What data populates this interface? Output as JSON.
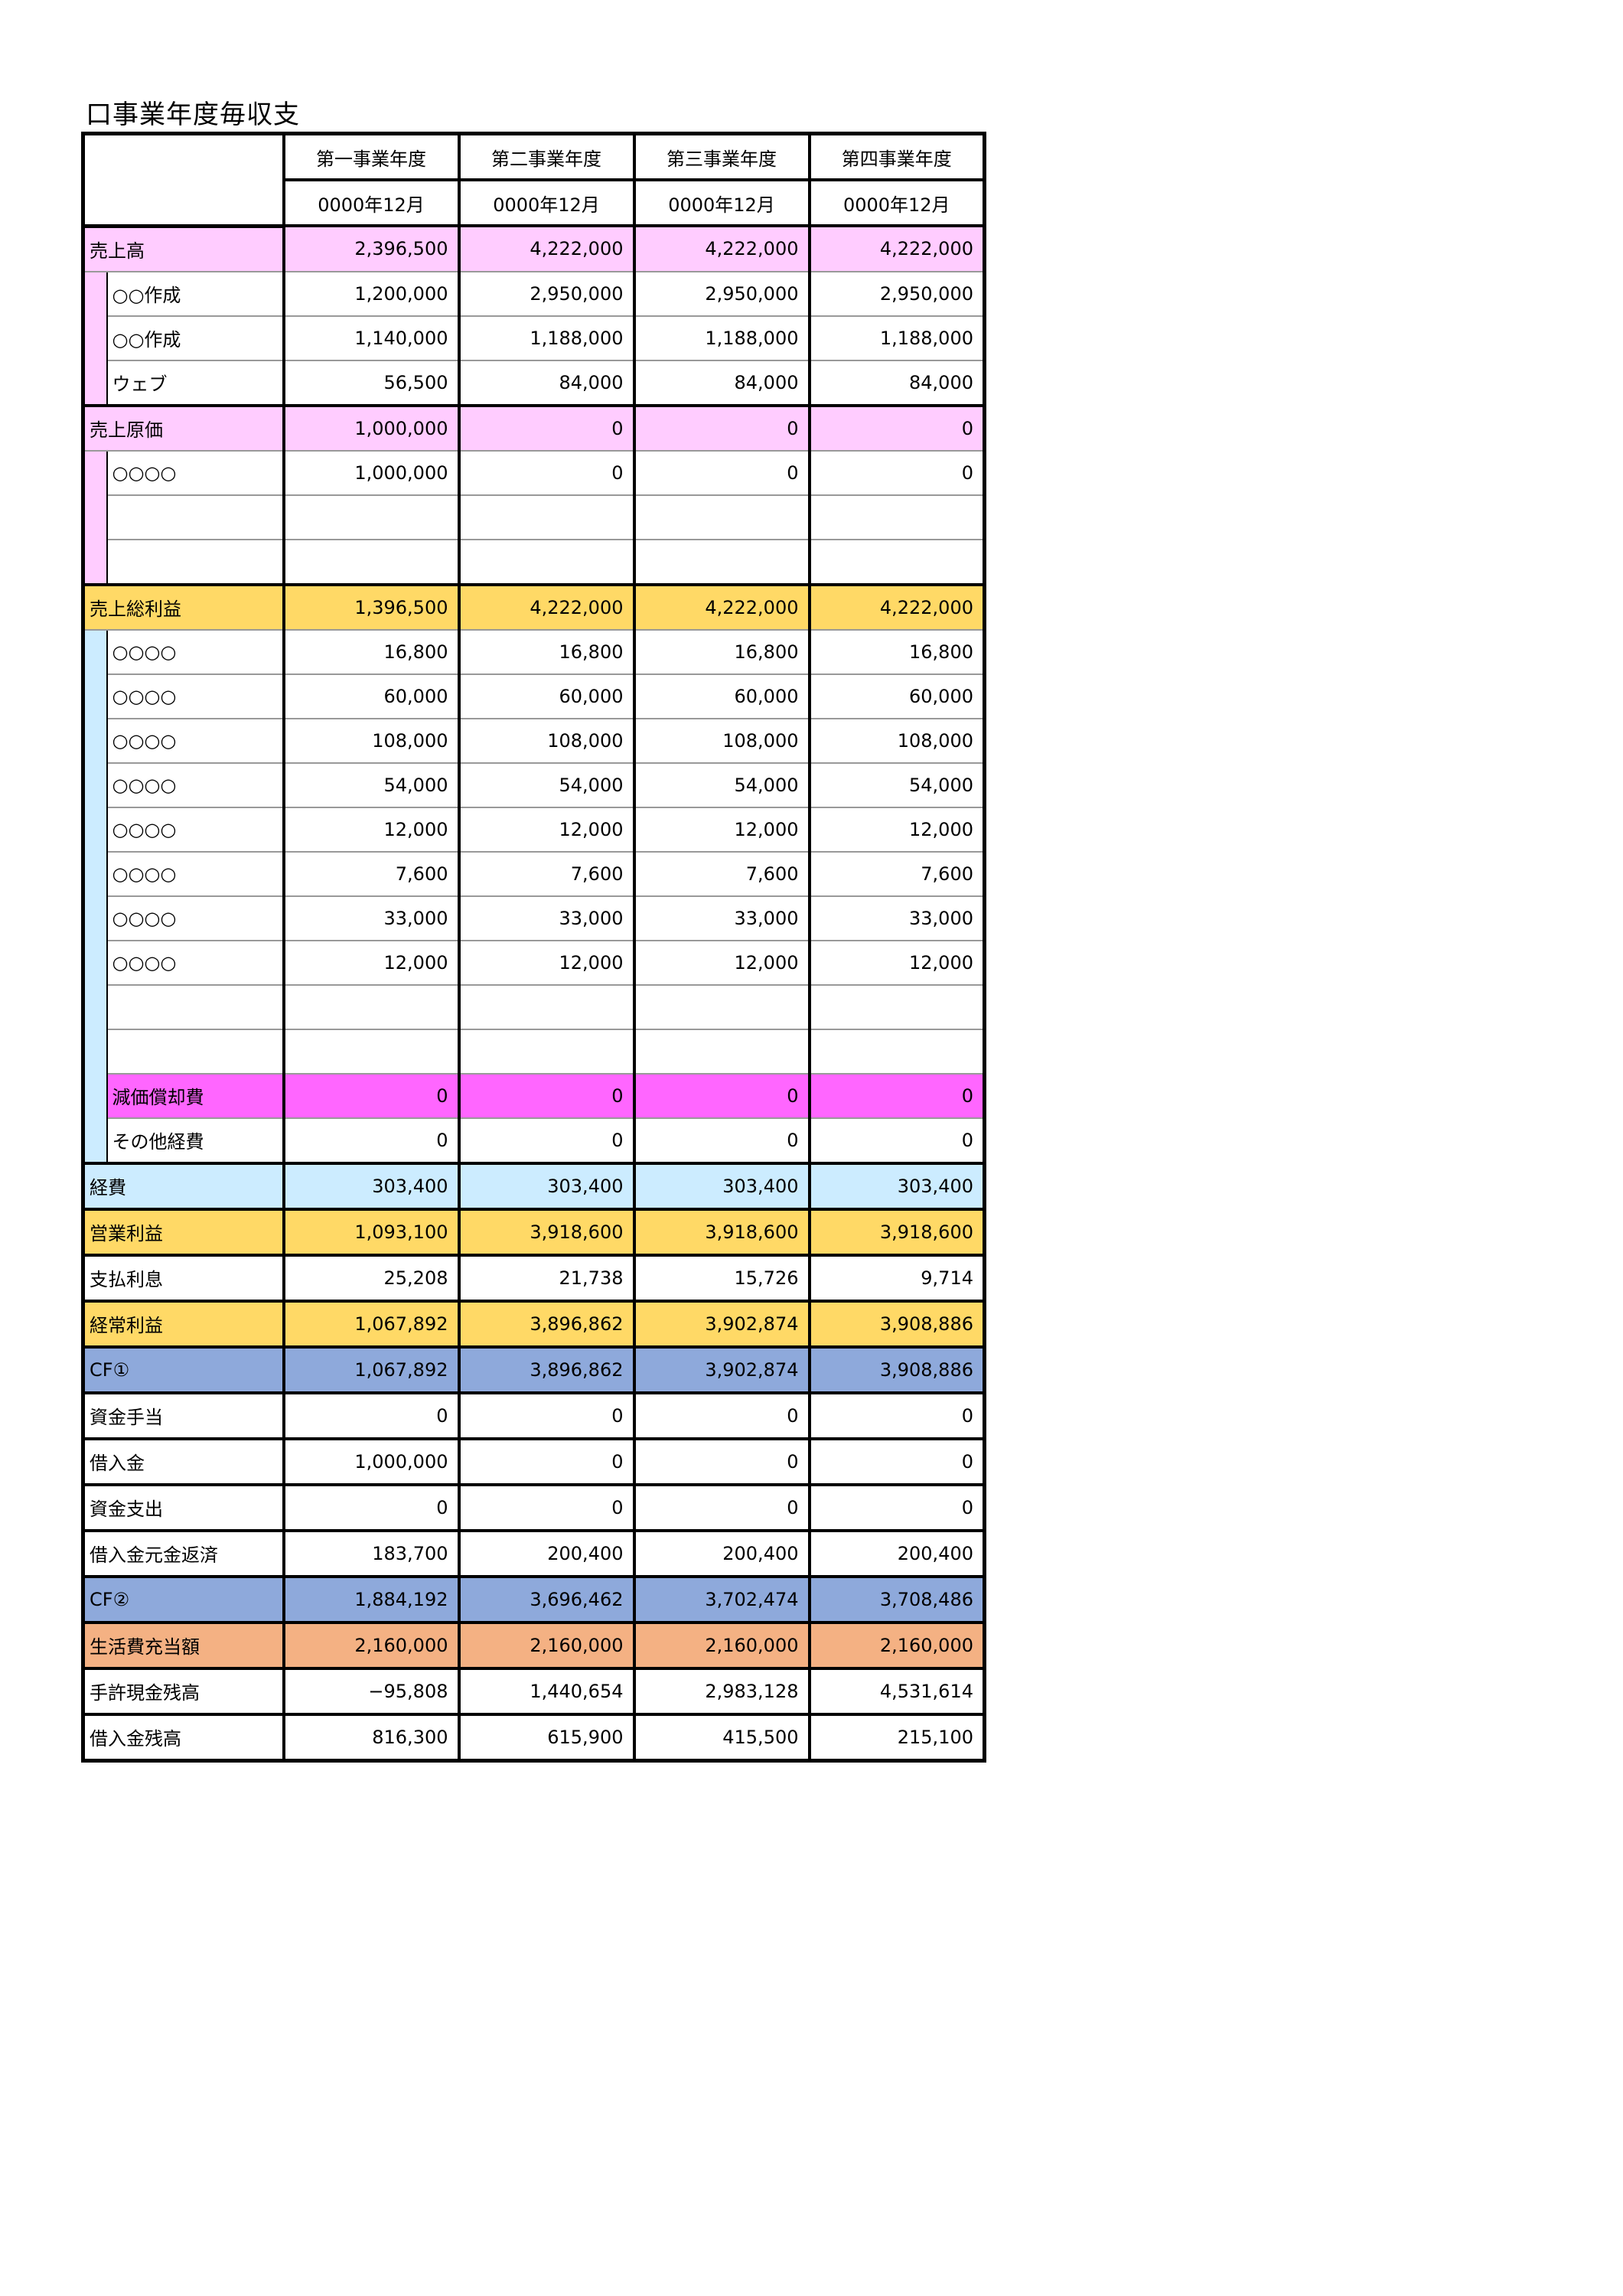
{
  "title": "口事業年度毎収支",
  "colors": {
    "pink": "#FFCCFF",
    "yellow": "#FFD966",
    "lightblue": "#CCECFF",
    "magenta": "#FF66FF",
    "blue": "#8EA9DB",
    "orange": "#F4B183",
    "white": "#FFFFFF"
  },
  "header": {
    "periods": [
      "第一事業年度",
      "第二事業年度",
      "第三事業年度",
      "第四事業年度"
    ],
    "dates": [
      "0000年12月",
      "0000年12月",
      "0000年12月",
      "0000年12月"
    ]
  },
  "rows": [
    {
      "label": "売上高",
      "values": [
        "2,396,500",
        "4,222,000",
        "4,222,000",
        "4,222,000"
      ],
      "color": "pink",
      "level": 0
    },
    {
      "label": "○○作成",
      "values": [
        "1,200,000",
        "2,950,000",
        "2,950,000",
        "2,950,000"
      ],
      "color": "white",
      "level": 1,
      "group": "pink"
    },
    {
      "label": "○○作成",
      "values": [
        "1,140,000",
        "1,188,000",
        "1,188,000",
        "1,188,000"
      ],
      "color": "white",
      "level": 1,
      "group": "pink"
    },
    {
      "label": "ウェブ",
      "values": [
        "56,500",
        "84,000",
        "84,000",
        "84,000"
      ],
      "color": "white",
      "level": 1,
      "group": "pink"
    },
    {
      "label": "売上原価",
      "values": [
        "1,000,000",
        "0",
        "0",
        "0"
      ],
      "color": "pink",
      "level": 0
    },
    {
      "label": "○○○○",
      "values": [
        "1,000,000",
        "0",
        "0",
        "0"
      ],
      "color": "white",
      "level": 1,
      "group": "pink"
    },
    {
      "label": "",
      "values": [
        "",
        "",
        "",
        ""
      ],
      "color": "white",
      "level": 1,
      "group": "pink"
    },
    {
      "label": "",
      "values": [
        "",
        "",
        "",
        ""
      ],
      "color": "white",
      "level": 1,
      "group": "pink"
    },
    {
      "label": "売上総利益",
      "values": [
        "1,396,500",
        "4,222,000",
        "4,222,000",
        "4,222,000"
      ],
      "color": "yellow",
      "level": 0
    },
    {
      "label": "○○○○",
      "values": [
        "16,800",
        "16,800",
        "16,800",
        "16,800"
      ],
      "color": "white",
      "level": 1,
      "group": "lightblue"
    },
    {
      "label": "○○○○",
      "values": [
        "60,000",
        "60,000",
        "60,000",
        "60,000"
      ],
      "color": "white",
      "level": 1,
      "group": "lightblue"
    },
    {
      "label": "○○○○",
      "values": [
        "108,000",
        "108,000",
        "108,000",
        "108,000"
      ],
      "color": "white",
      "level": 1,
      "group": "lightblue"
    },
    {
      "label": "○○○○",
      "values": [
        "54,000",
        "54,000",
        "54,000",
        "54,000"
      ],
      "color": "white",
      "level": 1,
      "group": "lightblue"
    },
    {
      "label": "○○○○",
      "values": [
        "12,000",
        "12,000",
        "12,000",
        "12,000"
      ],
      "color": "white",
      "level": 1,
      "group": "lightblue"
    },
    {
      "label": "○○○○",
      "values": [
        "7,600",
        "7,600",
        "7,600",
        "7,600"
      ],
      "color": "white",
      "level": 1,
      "group": "lightblue"
    },
    {
      "label": "○○○○",
      "values": [
        "33,000",
        "33,000",
        "33,000",
        "33,000"
      ],
      "color": "white",
      "level": 1,
      "group": "lightblue"
    },
    {
      "label": "○○○○",
      "values": [
        "12,000",
        "12,000",
        "12,000",
        "12,000"
      ],
      "color": "white",
      "level": 1,
      "group": "lightblue"
    },
    {
      "label": "",
      "values": [
        "",
        "",
        "",
        ""
      ],
      "color": "white",
      "level": 1,
      "group": "lightblue"
    },
    {
      "label": "",
      "values": [
        "",
        "",
        "",
        ""
      ],
      "color": "white",
      "level": 1,
      "group": "lightblue"
    },
    {
      "label": "減価償却費",
      "values": [
        "0",
        "0",
        "0",
        "0"
      ],
      "color": "magenta",
      "level": 1,
      "group": "lightblue"
    },
    {
      "label": "その他経費",
      "values": [
        "0",
        "0",
        "0",
        "0"
      ],
      "color": "white",
      "level": 1,
      "group": "lightblue"
    },
    {
      "label": "経費",
      "values": [
        "303,400",
        "303,400",
        "303,400",
        "303,400"
      ],
      "color": "lightblue",
      "level": 0
    },
    {
      "label": "営業利益",
      "values": [
        "1,093,100",
        "3,918,600",
        "3,918,600",
        "3,918,600"
      ],
      "color": "yellow",
      "level": 0,
      "thick": true
    },
    {
      "label": "支払利息",
      "values": [
        "25,208",
        "21,738",
        "15,726",
        "9,714"
      ],
      "color": "white",
      "level": 0,
      "thick": true
    },
    {
      "label": "経常利益",
      "values": [
        "1,067,892",
        "3,896,862",
        "3,902,874",
        "3,908,886"
      ],
      "color": "yellow",
      "level": 0
    },
    {
      "label": "CF①",
      "values": [
        "1,067,892",
        "3,896,862",
        "3,902,874",
        "3,908,886"
      ],
      "color": "blue",
      "level": 0,
      "thick": true
    },
    {
      "label": "資金手当",
      "values": [
        "0",
        "0",
        "0",
        "0"
      ],
      "color": "white",
      "level": 0,
      "thick": true
    },
    {
      "label": "借入金",
      "values": [
        "1,000,000",
        "0",
        "0",
        "0"
      ],
      "color": "white",
      "level": 0
    },
    {
      "label": "資金支出",
      "values": [
        "0",
        "0",
        "0",
        "0"
      ],
      "color": "white",
      "level": 0,
      "thick": true
    },
    {
      "label": "借入金元金返済",
      "values": [
        "183,700",
        "200,400",
        "200,400",
        "200,400"
      ],
      "color": "white",
      "level": 0
    },
    {
      "label": "CF②",
      "values": [
        "1,884,192",
        "3,696,462",
        "3,702,474",
        "3,708,486"
      ],
      "color": "blue",
      "level": 0,
      "thick": true
    },
    {
      "label": "生活費充当額",
      "values": [
        "2,160,000",
        "2,160,000",
        "2,160,000",
        "2,160,000"
      ],
      "color": "orange",
      "level": 0,
      "thick": true
    },
    {
      "label": "手許現金残高",
      "values": [
        "−95,808",
        "1,440,654",
        "2,983,128",
        "4,531,614"
      ],
      "color": "white",
      "level": 0,
      "thick": true
    },
    {
      "label": "借入金残高",
      "values": [
        "816,300",
        "615,900",
        "415,500",
        "215,100"
      ],
      "color": "white",
      "level": 0,
      "thick": true
    }
  ]
}
